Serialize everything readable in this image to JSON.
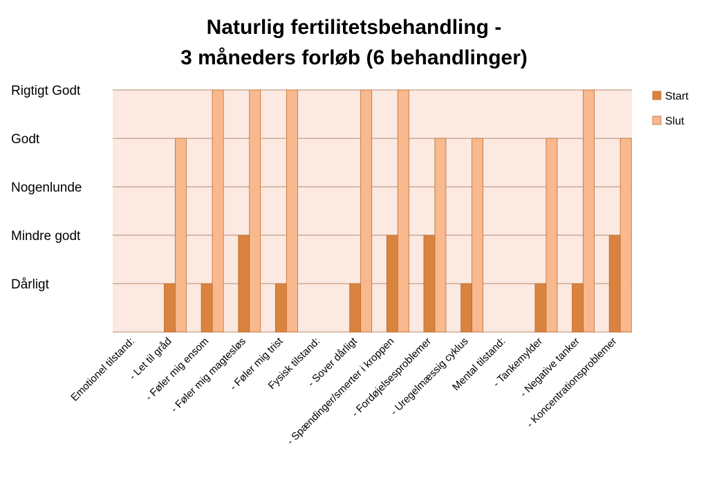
{
  "chart_data": {
    "type": "bar",
    "title_lines": [
      "Naturlig fertilitetsbehandling -",
      "3 måneders forløb (6 behandlinger)"
    ],
    "y_levels": [
      "Dårligt",
      "Mindre godt",
      "Nogenlunde",
      "Godt",
      "Rigtigt Godt"
    ],
    "ylim": [
      0,
      5
    ],
    "grid": true,
    "legend_position": "right",
    "categories": [
      "Emotionel tilstand:",
      "- Let til gråd",
      "- Føler mig ensom",
      "- Føler mig magtesløs",
      "- Føler mig trist",
      "Fysisk tilstand:",
      "- Sover dårligt",
      "- Spændinger/smerter i kroppen",
      "- Fordøjelsesproblemer",
      "- Uregelmæssig cyklus",
      "Mental tilstand:",
      "- Tankemylder",
      "- Negative tanker",
      "- Koncentrationsproblemer"
    ],
    "series": [
      {
        "name": "Start",
        "color": "#d9833f",
        "values": [
          0,
          1,
          1,
          2,
          1,
          0,
          1,
          2,
          2,
          1,
          0,
          1,
          1,
          2
        ]
      },
      {
        "name": "Slut",
        "color": "#f9b98e",
        "values": [
          0,
          4,
          5,
          5,
          5,
          0,
          5,
          5,
          4,
          4,
          0,
          4,
          5,
          4
        ]
      }
    ],
    "colors": {
      "plot_background": "#fce9e1",
      "gridline": "#b5896f",
      "bar_border": "#b86a2e"
    }
  }
}
